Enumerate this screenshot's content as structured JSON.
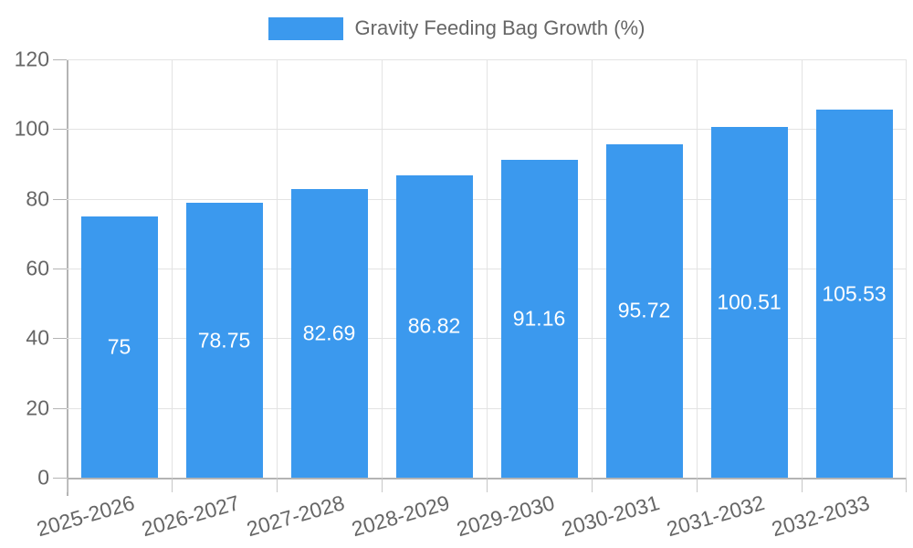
{
  "legend": {
    "label": "Gravity Feeding Bag Growth (%)"
  },
  "colors": {
    "bar": "#3b99ee",
    "axis": "#b4b4b4",
    "grid": "#e3e3e3",
    "tick_text": "#666666",
    "bar_label_text": "#ffffff"
  },
  "chart_data": {
    "type": "bar",
    "title": "Gravity Feeding Bag Growth (%)",
    "categories": [
      "2025-2026",
      "2026-2027",
      "2027-2028",
      "2028-2029",
      "2029-2030",
      "2030-2031",
      "2031-2032",
      "2032-2033"
    ],
    "values": [
      75,
      78.75,
      82.69,
      86.82,
      91.16,
      95.72,
      100.51,
      105.53
    ],
    "value_labels": [
      "75",
      "78.75",
      "82.69",
      "86.82",
      "91.16",
      "95.72",
      "100.51",
      "105.53"
    ],
    "series_name": "Gravity Feeding Bag Growth (%)",
    "xlabel": "",
    "ylabel": "",
    "ylim": [
      0,
      120
    ],
    "y_ticks": [
      0,
      20,
      40,
      60,
      80,
      100,
      120
    ],
    "grid": true,
    "legend_position": "top",
    "x_tick_rotation_deg": -16
  }
}
